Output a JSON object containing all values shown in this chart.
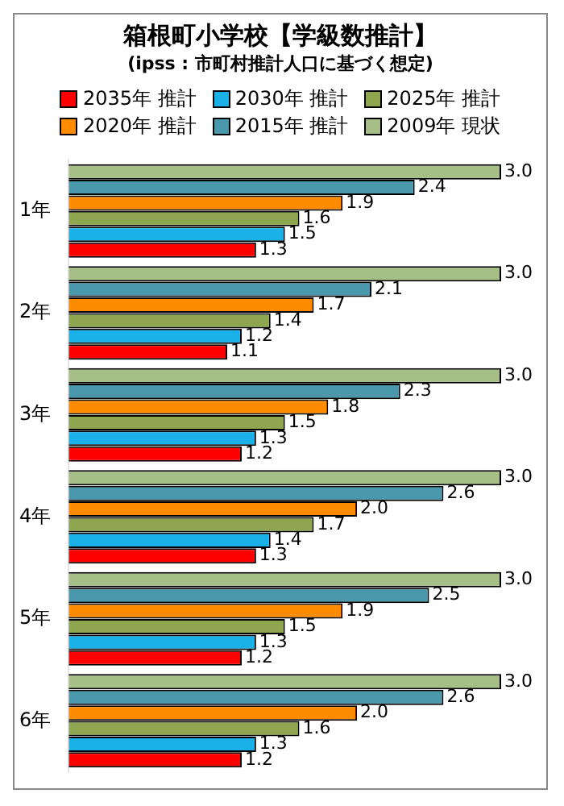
{
  "chart_data": {
    "type": "bar",
    "orientation": "horizontal",
    "title": "箱根町小学校【学級数推計】",
    "subtitle": "(ipss : 市町村推計人口に基づく想定)",
    "categories": [
      "1年",
      "2年",
      "3年",
      "4年",
      "5年",
      "6年"
    ],
    "series": [
      {
        "name": "2035年 推計",
        "color": "#ff0000",
        "values": [
          1.3,
          1.1,
          1.2,
          1.3,
          1.2,
          1.2
        ],
        "value_labels": [
          "1.3",
          "1.1",
          "1.2",
          "1.3",
          "1.2",
          "1.2"
        ]
      },
      {
        "name": "2030年 推計",
        "color": "#1ab0e8",
        "values": [
          1.5,
          1.2,
          1.3,
          1.4,
          1.3,
          1.3
        ],
        "value_labels": [
          "1.5",
          "1.2",
          "1.3",
          "1.4",
          "1.3",
          "1.3"
        ]
      },
      {
        "name": "2025年 推計",
        "color": "#8da64f",
        "values": [
          1.6,
          1.4,
          1.5,
          1.7,
          1.5,
          1.6
        ],
        "value_labels": [
          "1.6",
          "1.4",
          "1.5",
          "1.7",
          "1.5",
          "1.6"
        ]
      },
      {
        "name": "2020年 推計",
        "color": "#ff8c00",
        "values": [
          1.9,
          1.7,
          1.8,
          2.0,
          1.9,
          2.0
        ],
        "value_labels": [
          "1.9",
          "1.7",
          "1.8",
          "2.0",
          "1.9",
          "2.0"
        ]
      },
      {
        "name": "2015年 推計",
        "color": "#4a98ab",
        "values": [
          2.4,
          2.1,
          2.3,
          2.6,
          2.5,
          2.6
        ],
        "value_labels": [
          "2.4",
          "2.1",
          "2.3",
          "2.6",
          "2.5",
          "2.6"
        ]
      },
      {
        "name": "2009年 現状",
        "color": "#a6bf86",
        "values": [
          3.0,
          3.0,
          3.0,
          3.0,
          3.0,
          3.0
        ],
        "value_labels": [
          "3.0",
          "3.0",
          "3.0",
          "3.0",
          "3.0",
          "3.0"
        ]
      }
    ],
    "legend": "top",
    "grid": false,
    "tick_labels": "y"
  }
}
